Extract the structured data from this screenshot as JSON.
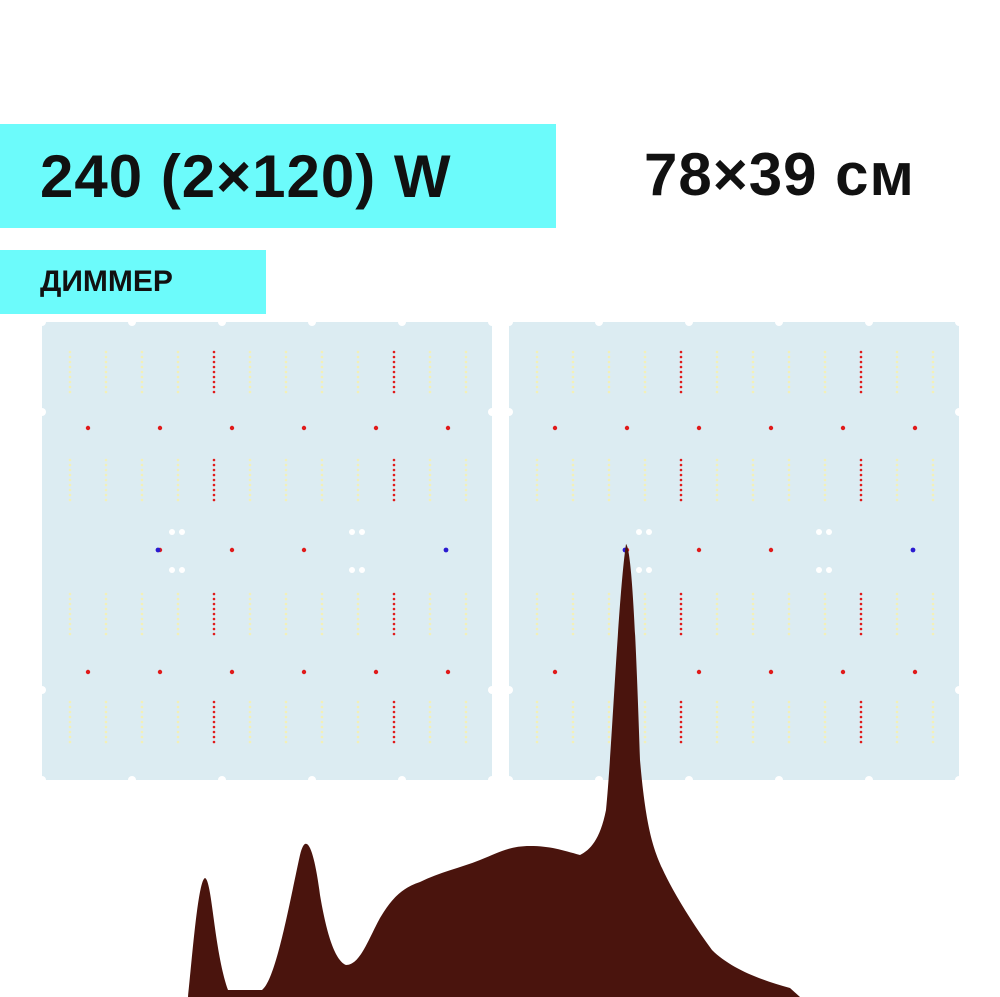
{
  "header": {
    "power_label": "240 (2×120) W",
    "size_label": "78×39 см"
  },
  "badge": {
    "dimmer_label": "ДИММЕР"
  },
  "colors": {
    "banner": "#6cfbfb",
    "board": "#dcecf2",
    "led_warm": "#f3f0b8",
    "led_red": "#e01a1a",
    "led_blue": "#2a1ad0"
  },
  "product": {
    "boards": [
      "left",
      "right"
    ],
    "icons": [
      "led-board",
      "spectrum-graph"
    ]
  }
}
